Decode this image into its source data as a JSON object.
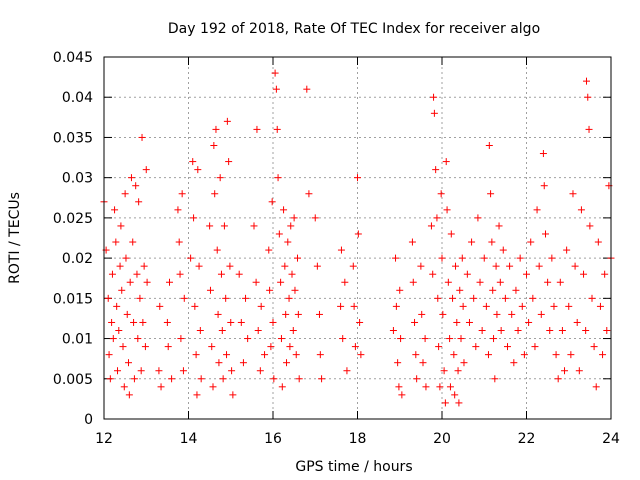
{
  "chart_data": {
    "type": "scatter",
    "title": "Day 192 of 2018, Rate Of TEC Index for receiver algo",
    "xlabel": "GPS time / hours",
    "ylabel": "ROTI / TECUs",
    "xlim": [
      12,
      24
    ],
    "ylim": [
      0,
      0.045
    ],
    "xticks": [
      12,
      14,
      16,
      18,
      20,
      22,
      24
    ],
    "xtick_labels": [
      "12",
      "14",
      "16",
      "18",
      "20",
      "22",
      "24"
    ],
    "yticks": [
      0,
      0.005,
      0.01,
      0.015,
      0.02,
      0.025,
      0.03,
      0.035,
      0.04,
      0.045
    ],
    "ytick_labels": [
      "0",
      "0.005",
      "0.01",
      "0.015",
      "0.02",
      "0.025",
      "0.03",
      "0.035",
      "0.04",
      "0.045"
    ],
    "grid": true,
    "marker": "+",
    "series": [
      {
        "name": "ROTI",
        "color": "#ff0000",
        "points": [
          [
            12.0,
            0.027
          ],
          [
            12.05,
            0.021
          ],
          [
            12.1,
            0.015
          ],
          [
            12.12,
            0.008
          ],
          [
            12.15,
            0.005
          ],
          [
            12.18,
            0.012
          ],
          [
            12.2,
            0.018
          ],
          [
            12.22,
            0.01
          ],
          [
            12.25,
            0.026
          ],
          [
            12.28,
            0.022
          ],
          [
            12.3,
            0.014
          ],
          [
            12.32,
            0.006
          ],
          [
            12.35,
            0.011
          ],
          [
            12.38,
            0.019
          ],
          [
            12.4,
            0.024
          ],
          [
            12.42,
            0.016
          ],
          [
            12.45,
            0.009
          ],
          [
            12.48,
            0.004
          ],
          [
            12.5,
            0.028
          ],
          [
            12.52,
            0.02
          ],
          [
            12.55,
            0.013
          ],
          [
            12.58,
            0.007
          ],
          [
            12.6,
            0.003
          ],
          [
            12.62,
            0.017
          ],
          [
            12.65,
            0.03
          ],
          [
            12.68,
            0.022
          ],
          [
            12.7,
            0.012
          ],
          [
            12.72,
            0.005
          ],
          [
            12.75,
            0.029
          ],
          [
            12.78,
            0.018
          ],
          [
            12.8,
            0.01
          ],
          [
            12.82,
            0.027
          ],
          [
            12.85,
            0.015
          ],
          [
            12.88,
            0.006
          ],
          [
            12.9,
            0.035
          ],
          [
            12.92,
            0.012
          ],
          [
            12.95,
            0.019
          ],
          [
            12.98,
            0.009
          ],
          [
            13.0,
            0.031
          ],
          [
            13.02,
            0.017
          ],
          [
            13.3,
            0.006
          ],
          [
            13.32,
            0.014
          ],
          [
            13.35,
            0.004
          ],
          [
            13.5,
            0.012
          ],
          [
            13.52,
            0.009
          ],
          [
            13.55,
            0.017
          ],
          [
            13.6,
            0.005
          ],
          [
            13.75,
            0.026
          ],
          [
            13.78,
            0.022
          ],
          [
            13.8,
            0.018
          ],
          [
            13.82,
            0.01
          ],
          [
            13.85,
            0.028
          ],
          [
            13.88,
            0.006
          ],
          [
            13.9,
            0.015
          ],
          [
            14.05,
            0.02
          ],
          [
            14.1,
            0.032
          ],
          [
            14.12,
            0.025
          ],
          [
            14.15,
            0.014
          ],
          [
            14.18,
            0.008
          ],
          [
            14.2,
            0.003
          ],
          [
            14.22,
            0.031
          ],
          [
            14.25,
            0.019
          ],
          [
            14.28,
            0.011
          ],
          [
            14.3,
            0.005
          ],
          [
            14.5,
            0.024
          ],
          [
            14.52,
            0.016
          ],
          [
            14.55,
            0.009
          ],
          [
            14.58,
            0.004
          ],
          [
            14.6,
            0.034
          ],
          [
            14.62,
            0.028
          ],
          [
            14.65,
            0.036
          ],
          [
            14.68,
            0.021
          ],
          [
            14.7,
            0.013
          ],
          [
            14.72,
            0.007
          ],
          [
            14.75,
            0.03
          ],
          [
            14.78,
            0.018
          ],
          [
            14.8,
            0.011
          ],
          [
            14.82,
            0.005
          ],
          [
            14.85,
            0.024
          ],
          [
            14.88,
            0.015
          ],
          [
            14.9,
            0.008
          ],
          [
            14.92,
            0.037
          ],
          [
            14.95,
            0.032
          ],
          [
            14.98,
            0.019
          ],
          [
            15.0,
            0.012
          ],
          [
            15.02,
            0.006
          ],
          [
            15.05,
            0.003
          ],
          [
            15.2,
            0.018
          ],
          [
            15.25,
            0.012
          ],
          [
            15.3,
            0.007
          ],
          [
            15.35,
            0.015
          ],
          [
            15.4,
            0.01
          ],
          [
            15.55,
            0.024
          ],
          [
            15.6,
            0.017
          ],
          [
            15.62,
            0.036
          ],
          [
            15.65,
            0.011
          ],
          [
            15.7,
            0.006
          ],
          [
            15.72,
            0.014
          ],
          [
            15.8,
            0.008
          ],
          [
            15.9,
            0.021
          ],
          [
            15.92,
            0.016
          ],
          [
            15.95,
            0.009
          ],
          [
            15.98,
            0.027
          ],
          [
            16.0,
            0.012
          ],
          [
            16.02,
            0.005
          ],
          [
            16.05,
            0.043
          ],
          [
            16.08,
            0.041
          ],
          [
            16.1,
            0.036
          ],
          [
            16.12,
            0.03
          ],
          [
            16.15,
            0.023
          ],
          [
            16.18,
            0.017
          ],
          [
            16.2,
            0.01
          ],
          [
            16.22,
            0.004
          ],
          [
            16.25,
            0.026
          ],
          [
            16.28,
            0.019
          ],
          [
            16.3,
            0.013
          ],
          [
            16.32,
            0.007
          ],
          [
            16.35,
            0.022
          ],
          [
            16.38,
            0.015
          ],
          [
            16.4,
            0.009
          ],
          [
            16.42,
            0.024
          ],
          [
            16.45,
            0.018
          ],
          [
            16.48,
            0.011
          ],
          [
            16.5,
            0.025
          ],
          [
            16.52,
            0.016
          ],
          [
            16.55,
            0.008
          ],
          [
            16.58,
            0.02
          ],
          [
            16.6,
            0.013
          ],
          [
            16.62,
            0.005
          ],
          [
            16.8,
            0.041
          ],
          [
            16.85,
            0.028
          ],
          [
            17.0,
            0.025
          ],
          [
            17.05,
            0.019
          ],
          [
            17.1,
            0.013
          ],
          [
            17.12,
            0.008
          ],
          [
            17.15,
            0.005
          ],
          [
            17.6,
            0.014
          ],
          [
            17.62,
            0.021
          ],
          [
            17.65,
            0.01
          ],
          [
            17.7,
            0.017
          ],
          [
            17.75,
            0.006
          ],
          [
            17.9,
            0.019
          ],
          [
            17.92,
            0.014
          ],
          [
            17.95,
            0.009
          ],
          [
            18.0,
            0.03
          ],
          [
            18.02,
            0.023
          ],
          [
            18.05,
            0.012
          ],
          [
            18.08,
            0.008
          ],
          [
            18.85,
            0.011
          ],
          [
            18.9,
            0.02
          ],
          [
            18.92,
            0.014
          ],
          [
            18.95,
            0.007
          ],
          [
            18.98,
            0.004
          ],
          [
            19.0,
            0.016
          ],
          [
            19.02,
            0.01
          ],
          [
            19.05,
            0.003
          ],
          [
            19.3,
            0.022
          ],
          [
            19.32,
            0.017
          ],
          [
            19.35,
            0.012
          ],
          [
            19.38,
            0.008
          ],
          [
            19.4,
            0.005
          ],
          [
            19.5,
            0.019
          ],
          [
            19.52,
            0.013
          ],
          [
            19.55,
            0.007
          ],
          [
            19.6,
            0.01
          ],
          [
            19.62,
            0.004
          ],
          [
            19.75,
            0.024
          ],
          [
            19.78,
            0.018
          ],
          [
            19.8,
            0.04
          ],
          [
            19.82,
            0.038
          ],
          [
            19.85,
            0.031
          ],
          [
            19.88,
            0.025
          ],
          [
            19.9,
            0.015
          ],
          [
            19.92,
            0.009
          ],
          [
            19.95,
            0.004
          ],
          [
            19.98,
            0.028
          ],
          [
            20.0,
            0.02
          ],
          [
            20.02,
            0.013
          ],
          [
            20.05,
            0.006
          ],
          [
            20.08,
            0.002
          ],
          [
            20.1,
            0.032
          ],
          [
            20.12,
            0.026
          ],
          [
            20.15,
            0.017
          ],
          [
            20.18,
            0.01
          ],
          [
            20.2,
            0.004
          ],
          [
            20.22,
            0.023
          ],
          [
            20.25,
            0.015
          ],
          [
            20.28,
            0.008
          ],
          [
            20.3,
            0.003
          ],
          [
            20.32,
            0.019
          ],
          [
            20.35,
            0.012
          ],
          [
            20.38,
            0.006
          ],
          [
            20.4,
            0.002
          ],
          [
            20.42,
            0.016
          ],
          [
            20.45,
            0.01
          ],
          [
            20.48,
            0.02
          ],
          [
            20.5,
            0.014
          ],
          [
            20.52,
            0.007
          ],
          [
            20.6,
            0.018
          ],
          [
            20.65,
            0.012
          ],
          [
            20.7,
            0.022
          ],
          [
            20.75,
            0.015
          ],
          [
            20.8,
            0.009
          ],
          [
            20.85,
            0.025
          ],
          [
            20.9,
            0.017
          ],
          [
            20.95,
            0.011
          ],
          [
            21.0,
            0.02
          ],
          [
            21.05,
            0.014
          ],
          [
            21.1,
            0.008
          ],
          [
            21.12,
            0.034
          ],
          [
            21.15,
            0.028
          ],
          [
            21.18,
            0.022
          ],
          [
            21.2,
            0.016
          ],
          [
            21.22,
            0.01
          ],
          [
            21.25,
            0.005
          ],
          [
            21.28,
            0.019
          ],
          [
            21.3,
            0.013
          ],
          [
            21.35,
            0.024
          ],
          [
            21.38,
            0.017
          ],
          [
            21.4,
            0.011
          ],
          [
            21.45,
            0.021
          ],
          [
            21.5,
            0.015
          ],
          [
            21.55,
            0.009
          ],
          [
            21.6,
            0.019
          ],
          [
            21.65,
            0.013
          ],
          [
            21.7,
            0.007
          ],
          [
            21.75,
            0.016
          ],
          [
            21.8,
            0.011
          ],
          [
            21.85,
            0.02
          ],
          [
            21.9,
            0.014
          ],
          [
            21.95,
            0.008
          ],
          [
            22.0,
            0.018
          ],
          [
            22.05,
            0.012
          ],
          [
            22.1,
            0.022
          ],
          [
            22.15,
            0.015
          ],
          [
            22.2,
            0.009
          ],
          [
            22.25,
            0.026
          ],
          [
            22.3,
            0.019
          ],
          [
            22.35,
            0.013
          ],
          [
            22.4,
            0.033
          ],
          [
            22.42,
            0.029
          ],
          [
            22.45,
            0.023
          ],
          [
            22.5,
            0.017
          ],
          [
            22.55,
            0.011
          ],
          [
            22.6,
            0.02
          ],
          [
            22.65,
            0.014
          ],
          [
            22.7,
            0.008
          ],
          [
            22.75,
            0.005
          ],
          [
            22.8,
            0.017
          ],
          [
            22.85,
            0.011
          ],
          [
            22.9,
            0.006
          ],
          [
            22.95,
            0.021
          ],
          [
            23.0,
            0.014
          ],
          [
            23.05,
            0.008
          ],
          [
            23.1,
            0.028
          ],
          [
            23.15,
            0.019
          ],
          [
            23.2,
            0.012
          ],
          [
            23.25,
            0.006
          ],
          [
            23.3,
            0.026
          ],
          [
            23.35,
            0.018
          ],
          [
            23.4,
            0.011
          ],
          [
            23.42,
            0.042
          ],
          [
            23.45,
            0.04
          ],
          [
            23.48,
            0.036
          ],
          [
            23.5,
            0.024
          ],
          [
            23.55,
            0.015
          ],
          [
            23.6,
            0.009
          ],
          [
            23.65,
            0.004
          ],
          [
            23.7,
            0.022
          ],
          [
            23.75,
            0.014
          ],
          [
            23.8,
            0.008
          ],
          [
            23.85,
            0.018
          ],
          [
            23.9,
            0.011
          ],
          [
            23.95,
            0.029
          ],
          [
            24.0,
            0.02
          ]
        ]
      }
    ]
  }
}
